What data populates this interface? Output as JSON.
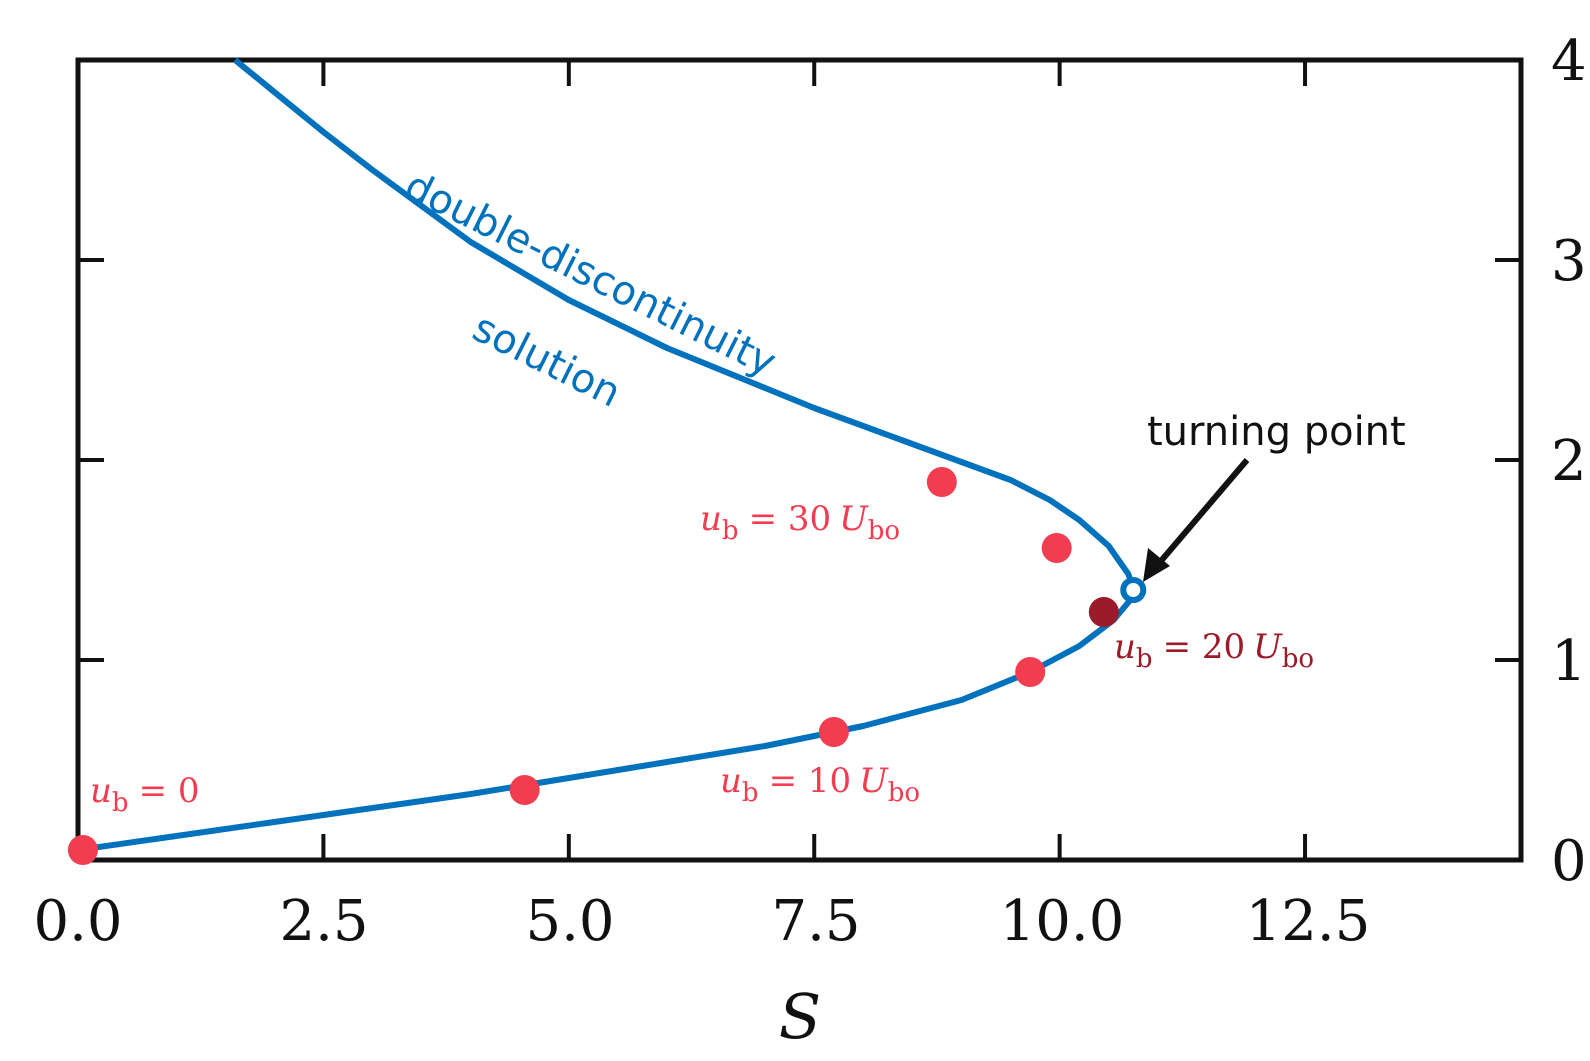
{
  "chart_data": {
    "type": "line",
    "xlabel": "S",
    "ylabel": "",
    "xlim": [
      0,
      14.7
    ],
    "ylim": [
      0,
      4
    ],
    "x_ticks": [
      "0.0",
      "2.5",
      "5.0",
      "7.5",
      "10.0",
      "12.5"
    ],
    "y_ticks": [
      "0",
      "1",
      "2",
      "3",
      "4"
    ],
    "grid": false,
    "colors": {
      "curve": "#0072bd",
      "points": "#f23c50",
      "highlight": "#9b1b2a",
      "axis": "#111111"
    },
    "series": [
      {
        "name": "double-discontinuity solution",
        "x": [
          0.0,
          1.0,
          2.0,
          3.0,
          4.0,
          5.0,
          6.0,
          7.0,
          8.0,
          9.0,
          9.7,
          10.2,
          10.55,
          10.72,
          10.76,
          10.7,
          10.5,
          10.2,
          9.9,
          9.5,
          9.0,
          8.5,
          8.0,
          7.5,
          7.0,
          6.0,
          5.0,
          4.0,
          3.0,
          2.5,
          2.0,
          1.6
        ],
        "y": [
          0.05,
          0.12,
          0.19,
          0.26,
          0.33,
          0.41,
          0.49,
          0.57,
          0.67,
          0.8,
          0.94,
          1.07,
          1.2,
          1.3,
          1.35,
          1.43,
          1.57,
          1.7,
          1.8,
          1.9,
          1.99,
          2.08,
          2.17,
          2.26,
          2.36,
          2.56,
          2.8,
          3.09,
          3.45,
          3.64,
          3.84,
          4.0
        ]
      }
    ],
    "points": [
      {
        "x": 0.05,
        "y": 0.05,
        "kind": "sample"
      },
      {
        "x": 4.55,
        "y": 0.35,
        "kind": "sample"
      },
      {
        "x": 7.7,
        "y": 0.64,
        "kind": "sample"
      },
      {
        "x": 9.7,
        "y": 0.94,
        "kind": "sample"
      },
      {
        "x": 10.45,
        "y": 1.24,
        "kind": "highlight"
      },
      {
        "x": 9.97,
        "y": 1.56,
        "kind": "sample"
      },
      {
        "x": 8.8,
        "y": 1.89,
        "kind": "sample"
      }
    ],
    "turning_point": {
      "x": 10.75,
      "y": 1.35
    },
    "annotations": {
      "curve_label_line1": "double-discontinuity",
      "curve_label_line2": "solution",
      "turning_point": "turning point",
      "ub_0": {
        "var": "u",
        "sub": "b",
        "rhs": "= 0"
      },
      "ub_10": {
        "var": "u",
        "sub": "b",
        "rhs": "= 10",
        "unit": "U",
        "unit_sub": "bo"
      },
      "ub_20": {
        "var": "u",
        "sub": "b",
        "rhs": "= 20",
        "unit": "U",
        "unit_sub": "bo"
      },
      "ub_30": {
        "var": "u",
        "sub": "b",
        "rhs": "= 30",
        "unit": "U",
        "unit_sub": "bo"
      }
    }
  }
}
